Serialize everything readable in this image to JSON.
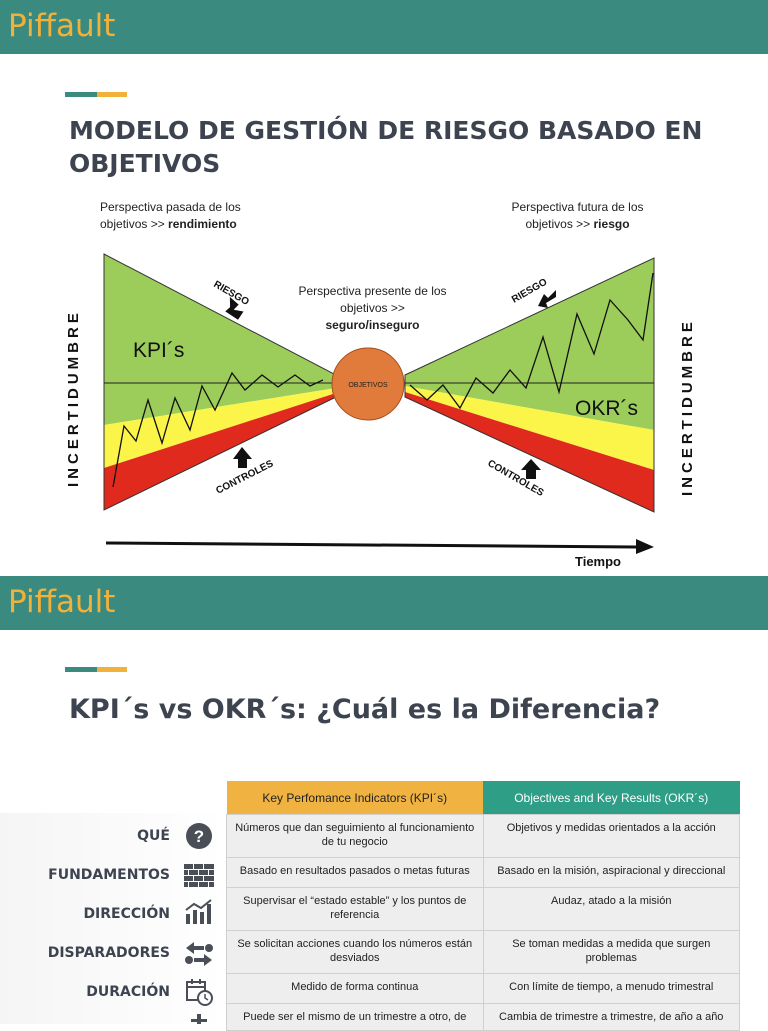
{
  "slide1": {
    "brand": "Piffault",
    "title_line1": "MODELO DE GESTIÓN DE RIESGO BASADO EN",
    "title_line2": "OBJETIVOS",
    "past_line1": "Perspectiva pasada de los",
    "past_line2_a": "objetivos >> ",
    "past_line2_b": "rendimiento",
    "future_line1": "Perspectiva futura de los",
    "future_line2_a": "objetivos >> ",
    "future_line2_b": "riesgo",
    "present_line1": "Perspectiva presente de los",
    "present_line2": "objetivos >>",
    "present_line3": "seguro/inseguro",
    "left_axis": "INCERTIDUMBRE",
    "right_axis": "INCERTIDUMBRE",
    "kpi_label": "KPI´s",
    "okr_label": "OKR´s",
    "center_label": "OBJETIVOS",
    "riesgo_left": "RIESGO",
    "riesgo_right": "RIESGO",
    "controles_left": "CONTROLES",
    "controles_right": "CONTROLES",
    "time_label": "Tiempo",
    "colors": {
      "green": "#9ccc5a",
      "yellow": "#fbf54a",
      "red": "#e02a1e",
      "center": "#e07b3c"
    }
  },
  "slide2": {
    "brand": "Piffault",
    "title": "KPI´s vs OKR´s: ¿Cuál es la Diferencia?",
    "col_kpi": "Key Perfomance Indicators (KPI´s)",
    "col_okr": "Objectives and Key Results (OKR´s)",
    "col_kpi_color": "#f0b342",
    "col_okr_color": "#2f9e86",
    "rows": [
      {
        "label": "QUÉ",
        "icon": "question-icon",
        "kpi": "Números que dan seguimiento al funcionamiento de tu negocio",
        "okr": "Objetivos y medidas orientados a la acción"
      },
      {
        "label": "FUNDAMENTOS",
        "icon": "brick-wall-icon",
        "kpi": "Basado en resultados pasados o metas futuras",
        "okr": "Basado en la misión, aspiracional y direccional"
      },
      {
        "label": "DIRECCIÓN",
        "icon": "bar-chart-icon",
        "kpi": "Supervisar el “estado estable” y los puntos de referencia",
        "okr": "Audaz, atado a la misión"
      },
      {
        "label": "DISPARADORES",
        "icon": "arrows-icon",
        "kpi": "Se solicitan acciones cuando los números están desviados",
        "okr": "Se toman medidas a medida que surgen problemas"
      },
      {
        "label": "DURACIÓN",
        "icon": "calendar-clock-icon",
        "kpi": "Medido de forma continua",
        "okr": "Con límite de tiempo, a menudo trimestral"
      },
      {
        "label": "",
        "icon": "partial-icon",
        "kpi": "Puede ser el mismo de un trimestre a otro, de",
        "okr": "Cambia de trimestre a trimestre, de año a año"
      }
    ]
  }
}
